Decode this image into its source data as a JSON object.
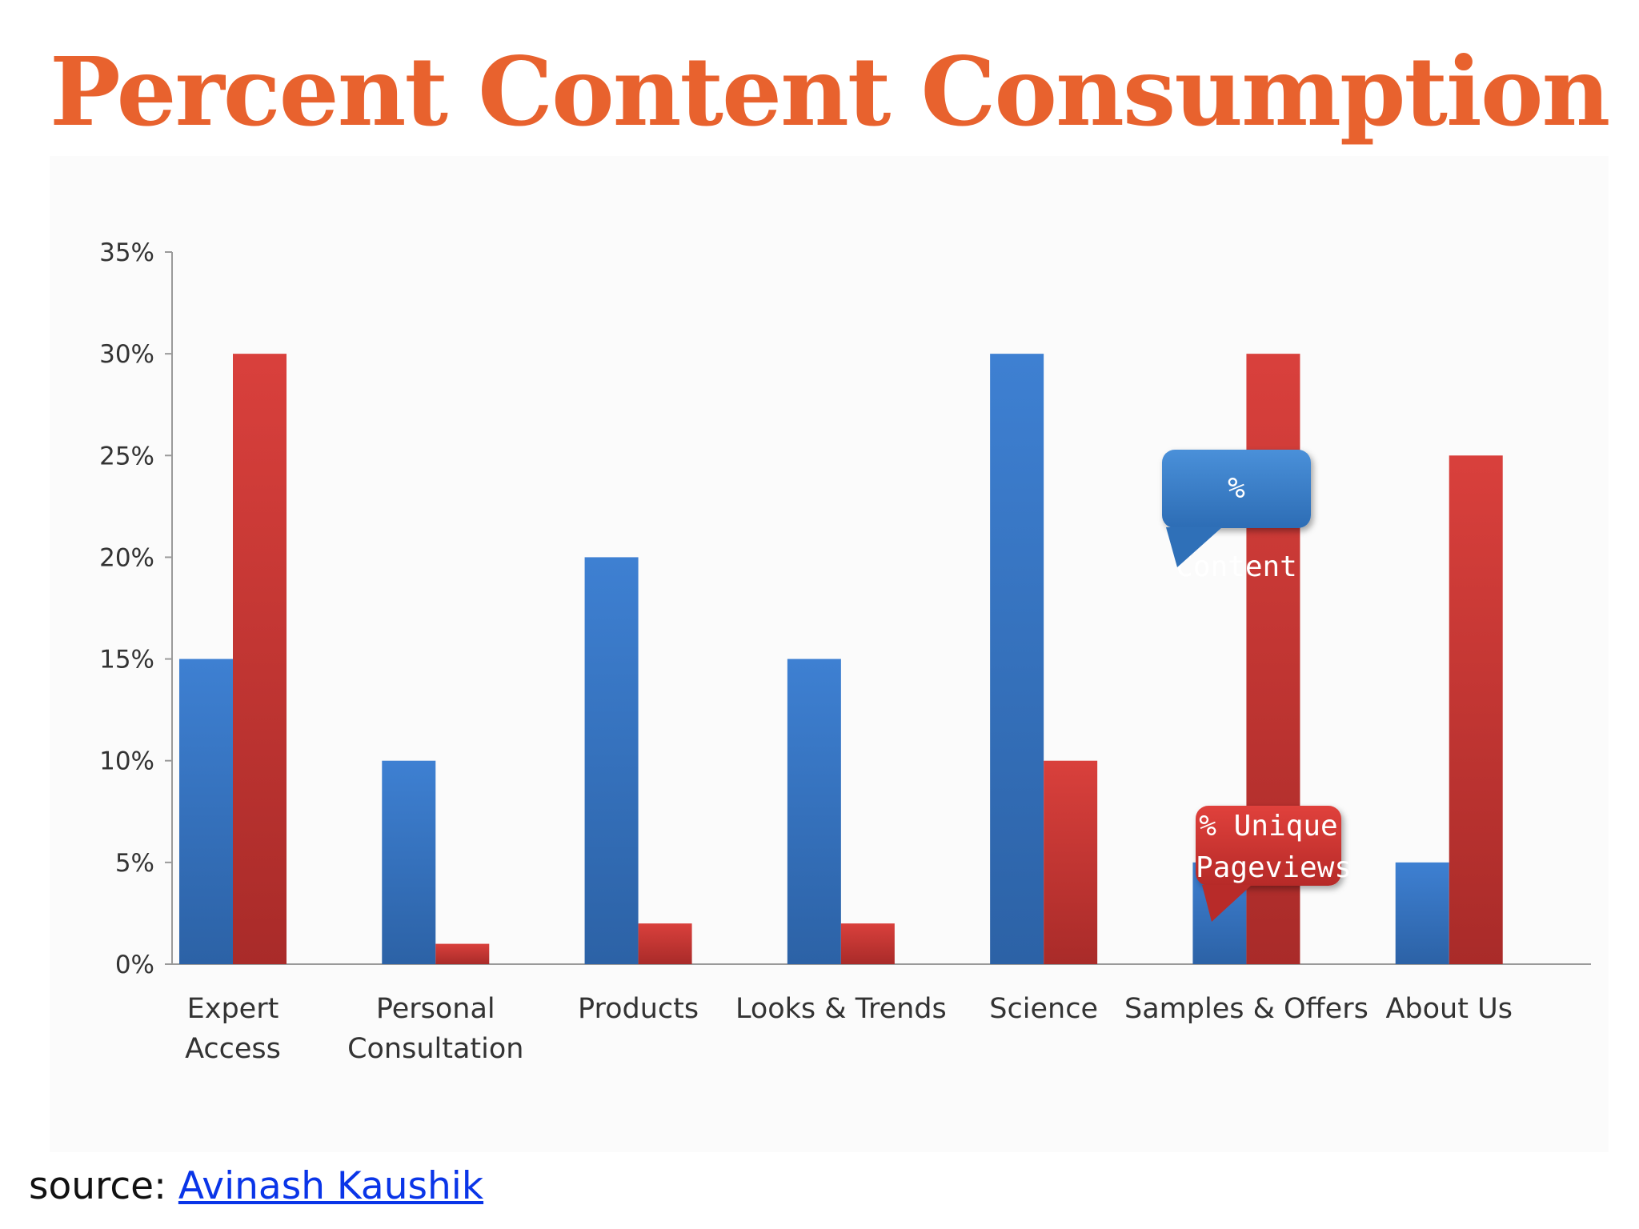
{
  "title": "Percent Content Consumption",
  "source": {
    "prefix": "source: ",
    "link_text": "Avinash Kaushik"
  },
  "colors": {
    "title": "#e8622e",
    "content_bar_top": "#3e80d2",
    "content_bar_bottom": "#2c62a6",
    "pageviews_bar_top": "#d9403c",
    "pageviews_bar_bottom": "#a92b29",
    "link": "#0a35e8"
  },
  "callouts": {
    "content": "% Content",
    "unique_line1": "% Unique",
    "unique_line2": "Pageviews"
  },
  "chart_data": {
    "type": "bar",
    "title": "Percent Content Consumption",
    "categories": [
      [
        "Expert",
        "Access"
      ],
      [
        "Personal",
        "Consultation"
      ],
      [
        "Products"
      ],
      [
        "Looks & Trends"
      ],
      [
        "Science"
      ],
      [
        "Samples & Offers"
      ],
      [
        "About Us"
      ]
    ],
    "series": [
      {
        "name": "% Content",
        "values": [
          15,
          10,
          20,
          15,
          30,
          5,
          5
        ]
      },
      {
        "name": "% Unique Pageviews",
        "values": [
          30,
          1,
          2,
          2,
          10,
          30,
          25
        ]
      }
    ],
    "ylim": [
      0,
      35
    ],
    "yticks": [
      0,
      5,
      10,
      15,
      20,
      25,
      30,
      35
    ],
    "ytick_labels": [
      "0%",
      "5%",
      "10%",
      "15%",
      "20%",
      "25%",
      "30%",
      "35%"
    ],
    "grid": false,
    "legend": "callouts"
  }
}
